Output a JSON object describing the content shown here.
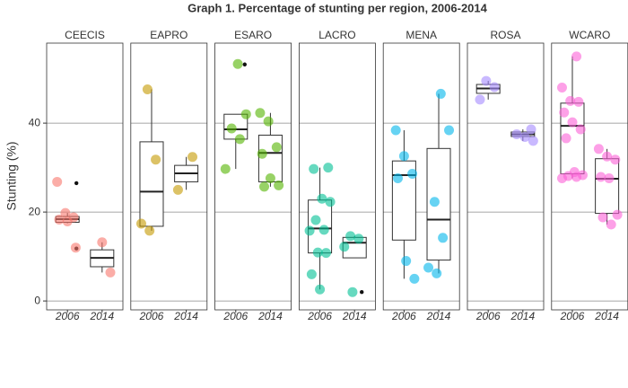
{
  "chart_data": {
    "type": "faceted-box",
    "title": "Graph 1. Percentage of stunting per region, 2006-2014",
    "y_label": "Stunting (%)",
    "ylim": [
      -2,
      58
    ],
    "yticks": [
      0,
      20,
      40
    ],
    "grid": true,
    "panels": [
      {
        "title": "CEECIS",
        "color": "#F8766D",
        "groups": [
          {
            "category": "2006",
            "points": [
              26.8,
              19.8,
              18.8,
              18.3,
              17.9,
              12.0
            ],
            "outliers": [
              26.5,
              11.8
            ],
            "box": {
              "min": 17.5,
              "q1": 17.7,
              "median": 18.4,
              "q3": 19.0,
              "max": 19.8
            }
          },
          {
            "category": "2014",
            "points": [
              13.2,
              6.4
            ],
            "outliers": [],
            "box": {
              "min": 6.4,
              "q1": 7.7,
              "median": 9.7,
              "q3": 11.5,
              "max": 13.2
            }
          }
        ]
      },
      {
        "title": "EAPRO",
        "color": "#C49A00",
        "groups": [
          {
            "category": "2006",
            "points": [
              47.6,
              31.8,
              17.4,
              15.8
            ],
            "outliers": [],
            "box": {
              "min": 15.8,
              "q1": 16.8,
              "median": 24.6,
              "q3": 35.8,
              "max": 47.6
            }
          },
          {
            "category": "2014",
            "points": [
              32.4,
              25.0
            ],
            "outliers": [],
            "box": {
              "min": 25.0,
              "q1": 26.8,
              "median": 28.7,
              "q3": 30.5,
              "max": 32.4
            }
          }
        ]
      },
      {
        "title": "ESARO",
        "color": "#53B400",
        "groups": [
          {
            "category": "2006",
            "points": [
              53.3,
              42.0,
              38.8,
              36.4,
              29.7
            ],
            "outliers": [
              53.2
            ],
            "box": {
              "min": 29.7,
              "q1": 36.4,
              "median": 38.6,
              "q3": 42.0,
              "max": 42.0
            }
          },
          {
            "category": "2014",
            "points": [
              42.3,
              40.4,
              34.6,
              33.1,
              27.6,
              26.0,
              25.7
            ],
            "outliers": [],
            "box": {
              "min": 25.7,
              "q1": 26.8,
              "median": 33.3,
              "q3": 37.3,
              "max": 42.3
            }
          }
        ]
      },
      {
        "title": "LACRO",
        "color": "#00C094",
        "groups": [
          {
            "category": "2006",
            "points": [
              30.0,
              29.7,
              23.0,
              22.3,
              18.2,
              16.0,
              15.8,
              10.9,
              10.8,
              6.0,
              2.6
            ],
            "outliers": [],
            "box": {
              "min": 2.6,
              "q1": 10.8,
              "median": 16.3,
              "q3": 22.7,
              "max": 30.0
            }
          },
          {
            "category": "2014",
            "points": [
              14.6,
              14.0,
              12.2,
              2.0
            ],
            "outliers": [
              2.0
            ],
            "box": {
              "min": 9.7,
              "q1": 9.7,
              "median": 13.1,
              "q3": 14.3,
              "max": 14.6
            }
          }
        ]
      },
      {
        "title": "MENA",
        "color": "#00B6EB",
        "groups": [
          {
            "category": "2006",
            "points": [
              38.4,
              32.6,
              28.6,
              27.6,
              9.0,
              5.0
            ],
            "outliers": [],
            "box": {
              "min": 5.0,
              "q1": 13.7,
              "median": 28.3,
              "q3": 31.5,
              "max": 38.4
            }
          },
          {
            "category": "2014",
            "points": [
              46.6,
              38.4,
              22.3,
              14.2,
              7.5,
              6.2
            ],
            "outliers": [],
            "box": {
              "min": 6.2,
              "q1": 9.2,
              "median": 18.3,
              "q3": 34.3,
              "max": 46.6
            }
          }
        ]
      },
      {
        "title": "ROSA",
        "color": "#A58AFF",
        "groups": [
          {
            "category": "2006",
            "points": [
              49.5,
              48.1,
              45.3
            ],
            "outliers": [],
            "box": {
              "min": 45.3,
              "q1": 46.7,
              "median": 47.8,
              "q3": 48.7,
              "max": 49.5
            }
          },
          {
            "category": "2014",
            "points": [
              38.6,
              37.5,
              36.9,
              36.0
            ],
            "outliers": [],
            "box": {
              "min": 36.0,
              "q1": 37.0,
              "median": 37.5,
              "q3": 38.0,
              "max": 38.6
            }
          }
        ]
      },
      {
        "title": "WCARO",
        "color": "#FB61D7",
        "groups": [
          {
            "category": "2006",
            "points": [
              55.0,
              48.0,
              45.0,
              44.8,
              42.4,
              40.2,
              38.6,
              36.6,
              29.0,
              28.3,
              28.1,
              27.9,
              27.6
            ],
            "outliers": [],
            "box": {
              "min": 27.6,
              "q1": 28.6,
              "median": 39.4,
              "q3": 44.5,
              "max": 55.0
            }
          },
          {
            "category": "2014",
            "points": [
              34.2,
              32.5,
              31.8,
              27.9,
              27.6,
              19.4,
              18.8,
              17.2
            ],
            "outliers": [],
            "box": {
              "min": 17.2,
              "q1": 19.7,
              "median": 27.5,
              "q3": 32.0,
              "max": 34.2
            }
          }
        ]
      }
    ]
  }
}
